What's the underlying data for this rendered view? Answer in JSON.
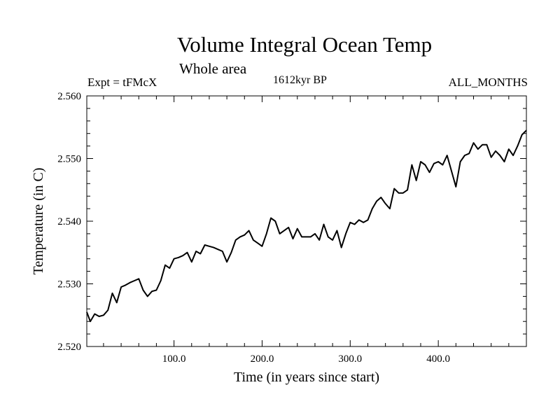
{
  "chart_data": {
    "type": "line",
    "title": "Volume Integral Ocean Temp",
    "subtitle": "Whole area",
    "annotations": {
      "left": "Expt = tFMcX",
      "center": "1612kyr BP",
      "right": "ALL_MONTHS"
    },
    "xlabel": "Time (in years since start)",
    "ylabel": "Temperature (in C)",
    "xlim": [
      1,
      500
    ],
    "ylim": [
      2.52,
      2.56
    ],
    "x_ticks": [
      100,
      200,
      300,
      400
    ],
    "x_tick_labels": [
      "100.0",
      "200.0",
      "300.0",
      "400.0"
    ],
    "y_ticks": [
      2.52,
      2.53,
      2.54,
      2.55,
      2.56
    ],
    "y_tick_labels": [
      "2.520",
      "2.530",
      "2.540",
      "2.550",
      "2.560"
    ],
    "series": [
      {
        "name": "Volume integral ocean temperature",
        "x": [
          1,
          5,
          10,
          15,
          20,
          25,
          30,
          35,
          40,
          45,
          50,
          55,
          60,
          65,
          70,
          75,
          80,
          85,
          90,
          95,
          100,
          105,
          110,
          115,
          120,
          125,
          130,
          135,
          140,
          145,
          150,
          155,
          160,
          165,
          170,
          175,
          180,
          185,
          190,
          195,
          200,
          205,
          210,
          215,
          220,
          225,
          230,
          235,
          240,
          245,
          250,
          255,
          260,
          265,
          270,
          275,
          280,
          285,
          290,
          295,
          300,
          305,
          310,
          315,
          320,
          325,
          330,
          335,
          340,
          345,
          350,
          355,
          360,
          365,
          370,
          375,
          380,
          385,
          390,
          395,
          400,
          405,
          410,
          415,
          420,
          425,
          430,
          435,
          440,
          445,
          450,
          455,
          460,
          465,
          470,
          475,
          480,
          485,
          490,
          495,
          500
        ],
        "values": [
          2.5255,
          2.524,
          2.5252,
          2.5248,
          2.525,
          2.5258,
          2.5285,
          2.527,
          2.5295,
          2.5298,
          2.5302,
          2.5305,
          2.5308,
          2.529,
          2.528,
          2.5288,
          2.529,
          2.5305,
          2.533,
          2.5325,
          2.534,
          2.5342,
          2.5345,
          2.535,
          2.5335,
          2.5352,
          2.5348,
          2.5362,
          2.536,
          2.5358,
          2.5355,
          2.5352,
          2.5335,
          2.535,
          2.537,
          2.5375,
          2.5378,
          2.5385,
          2.537,
          2.5365,
          2.536,
          2.538,
          2.5405,
          2.54,
          2.538,
          2.5385,
          2.539,
          2.5372,
          2.5388,
          2.5375,
          2.5375,
          2.5375,
          2.538,
          2.537,
          2.5395,
          2.5375,
          2.537,
          2.5385,
          2.5358,
          2.538,
          2.5398,
          2.5395,
          2.5402,
          2.5398,
          2.5402,
          2.542,
          2.5432,
          2.5438,
          2.5428,
          2.542,
          2.5452,
          2.5445,
          2.5445,
          2.545,
          2.549,
          2.5465,
          2.5495,
          2.549,
          2.5478,
          2.5492,
          2.5495,
          2.549,
          2.5505,
          2.548,
          2.5455,
          2.5495,
          2.5505,
          2.5508,
          2.5525,
          2.5515,
          2.5522,
          2.5522,
          2.5502,
          2.5512,
          2.5505,
          2.5495,
          2.5515,
          2.5505,
          2.552,
          2.5538,
          2.5545
        ]
      }
    ]
  }
}
